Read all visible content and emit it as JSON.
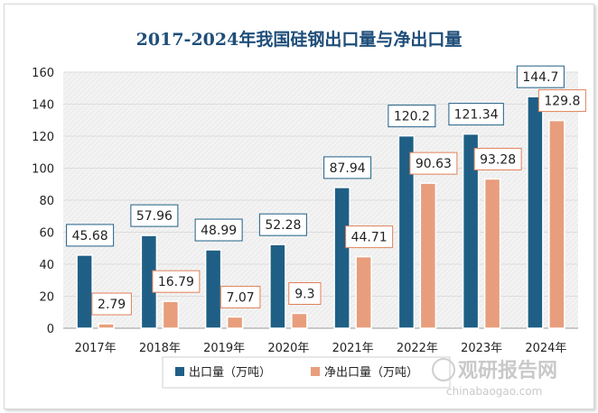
{
  "chart_data": {
    "type": "bar",
    "title": "2017-2024年我国硅钢出口量与净出口量",
    "categories": [
      "2017年",
      "2018年",
      "2019年",
      "2020年",
      "2021年",
      "2022年",
      "2023年",
      "2024年"
    ],
    "series": [
      {
        "name": "出口量（万吨）",
        "values": [
          45.68,
          57.96,
          48.99,
          52.28,
          87.94,
          120.2,
          121.34,
          144.7
        ],
        "labels": [
          "45.68",
          "57.96",
          "48.99",
          "52.28",
          "87.94",
          "120.2",
          "121.34",
          "144.7"
        ],
        "color": "#1f5f85",
        "label_border": "#1f5f85"
      },
      {
        "name": "净出口量（万吨）",
        "values": [
          2.79,
          16.79,
          7.07,
          9.3,
          44.71,
          90.63,
          93.28,
          129.8
        ],
        "labels": [
          "2.79",
          "16.79",
          "7.07",
          "9.3",
          "44.71",
          "90.63",
          "93.28",
          "129.8"
        ],
        "color": "#e89e7c",
        "label_border": "#e0805a"
      }
    ],
    "ylim": [
      0,
      160
    ],
    "yticks": [
      0,
      20,
      40,
      60,
      80,
      100,
      120,
      140,
      160
    ],
    "xlabel": "",
    "ylabel": "",
    "legend_position": "bottom"
  },
  "watermark": {
    "brand": "观研报告网",
    "url": "chinabaogao.com"
  }
}
